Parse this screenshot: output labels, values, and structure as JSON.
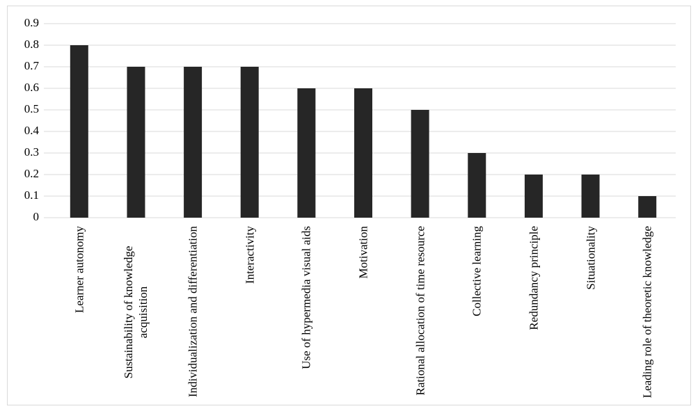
{
  "chart_data": {
    "type": "bar",
    "categories": [
      "Learner autonomy",
      "Sustainability of knowledge acquisition",
      "Individualization and differentiation",
      "Interactivity",
      "Use of hypermedia visual aids",
      "Motivation",
      "Rational allocation of time resource",
      "Collective learning",
      "Redundancy principle",
      "Situationality",
      "Leading role of theoretic knowledge"
    ],
    "values": [
      0.8,
      0.7,
      0.7,
      0.7,
      0.6,
      0.6,
      0.5,
      0.3,
      0.2,
      0.2,
      0.1
    ],
    "color": "#262626",
    "ylim": [
      0,
      0.9
    ],
    "yticks": [
      0,
      0.1,
      0.2,
      0.3,
      0.4,
      0.5,
      0.6,
      0.7,
      0.8,
      0.9
    ],
    "grid": true
  }
}
